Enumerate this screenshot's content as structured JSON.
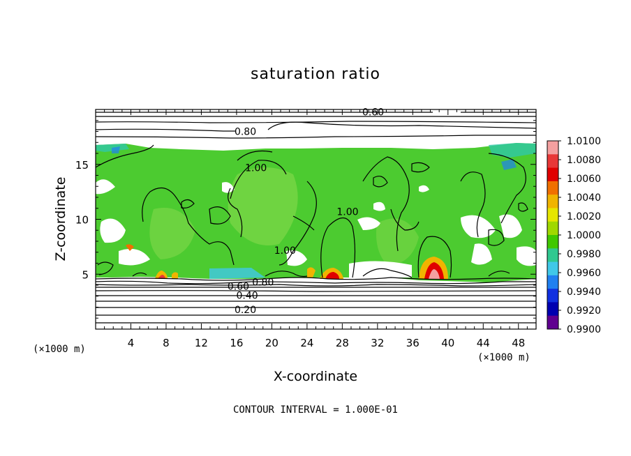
{
  "chart_data": {
    "type": "heatmap",
    "title": "saturation ratio",
    "xlabel": "X-coordinate",
    "ylabel": "Z-coordinate",
    "x_unit": "(×1000 m)",
    "z_unit": "(×1000 m)",
    "xlim": [
      0,
      50
    ],
    "ylim": [
      0,
      20
    ],
    "x_ticks": [
      "4",
      "8",
      "12",
      "16",
      "20",
      "24",
      "28",
      "32",
      "36",
      "40",
      "44",
      "48"
    ],
    "y_ticks": [
      "5",
      "10",
      "15"
    ],
    "footer": "CONTOUR INTERVAL = 1.000E-01",
    "colorbar": {
      "labels": [
        "1.0100",
        "1.0080",
        "1.0060",
        "1.0040",
        "1.0020",
        "1.0000",
        "0.9980",
        "0.9960",
        "0.9940",
        "0.9920",
        "0.9900"
      ],
      "colors": [
        "#f4a0a0",
        "#e83838",
        "#e00000",
        "#f07000",
        "#f0b400",
        "#e6e600",
        "#a0d800",
        "#40c800",
        "#30c890",
        "#40c8e8",
        "#2080f0",
        "#1030e0",
        "#0000b0",
        "#600090"
      ]
    },
    "contour_labels": [
      {
        "text": "0.60",
        "x": 31.5,
        "z": 19.6
      },
      {
        "text": "0.80",
        "x": 17.0,
        "z": 17.8
      },
      {
        "text": "1.00",
        "x": 18.2,
        "z": 14.5
      },
      {
        "text": "1.00",
        "x": 28.6,
        "z": 10.5
      },
      {
        "text": "1.00",
        "x": 21.5,
        "z": 7.0
      },
      {
        "text": "0.60",
        "x": 16.2,
        "z": 3.7
      },
      {
        "text": "0.80",
        "x": 19.0,
        "z": 4.1
      },
      {
        "text": "0.40",
        "x": 17.2,
        "z": 2.9
      },
      {
        "text": "0.20",
        "x": 17.0,
        "z": 1.6
      }
    ]
  }
}
